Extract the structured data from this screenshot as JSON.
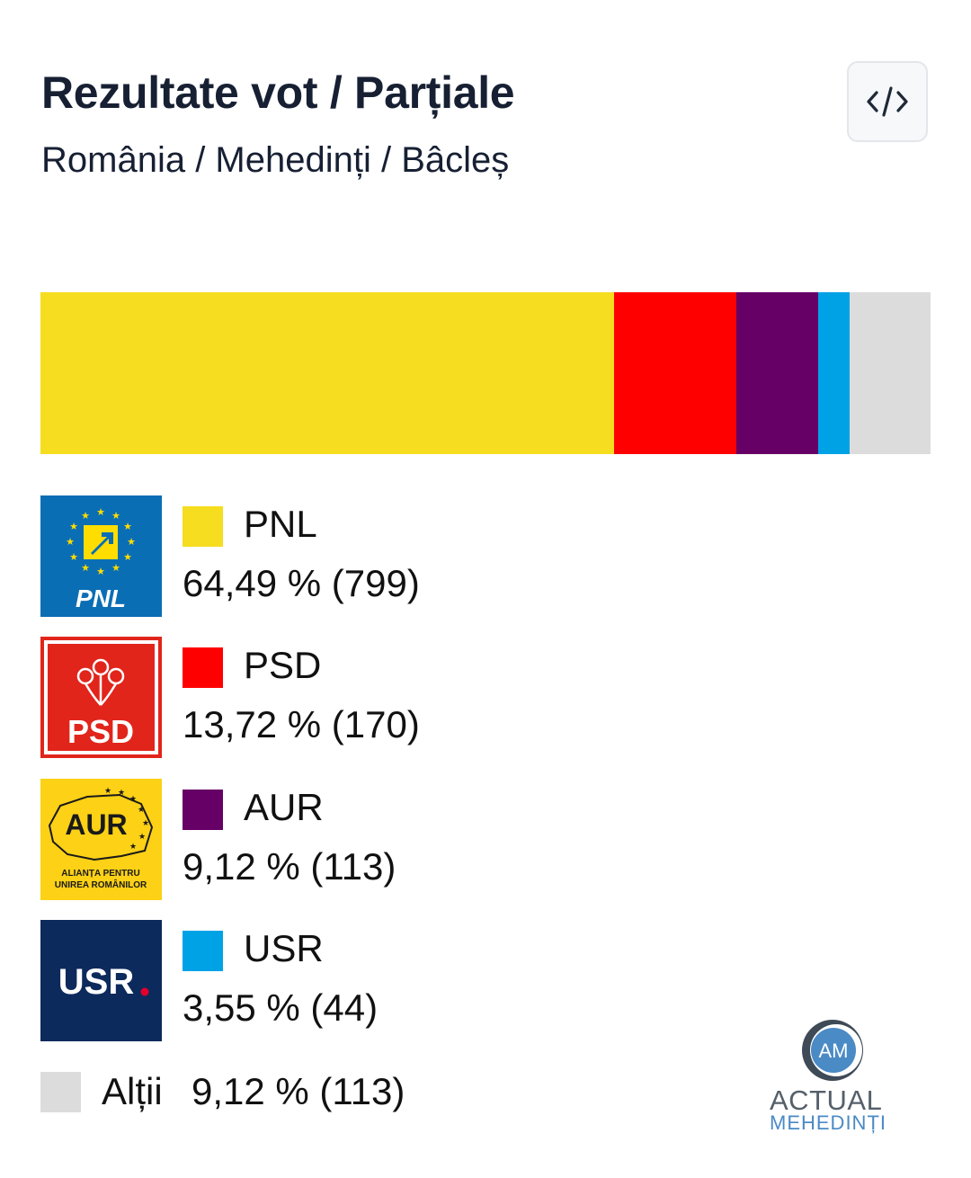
{
  "header": {
    "title": "Rezultate vot / Parțiale",
    "breadcrumb": "România / Mehedinți / Bâcleș"
  },
  "embed_button": {
    "icon": "code-icon"
  },
  "chart_data": {
    "type": "bar",
    "orientation": "horizontal-stacked",
    "categories": [
      "PNL",
      "PSD",
      "AUR",
      "USR",
      "Alții"
    ],
    "percentages": [
      64.49,
      13.72,
      9.12,
      3.55,
      9.12
    ],
    "votes": [
      799,
      170,
      113,
      44,
      113
    ],
    "colors": [
      "#f6dd1f",
      "#ff0000",
      "#660066",
      "#00a2e6",
      "#dcdcdc"
    ],
    "title": "Rezultate vot / Parțiale",
    "subtitle": "România / Mehedinți / Bâcleș",
    "legend_position": "bottom-left"
  },
  "legend": [
    {
      "name": "PNL",
      "value": "64,49 % (799)",
      "color": "#f6dd1f",
      "logo_text": "PNL"
    },
    {
      "name": "PSD",
      "value": "13,72 % (170)",
      "color": "#ff0000",
      "logo_text": "PSD"
    },
    {
      "name": "AUR",
      "value": "9,12 % (113)",
      "color": "#660066",
      "logo_text": "AUR",
      "logo_subtext_1": "ALIANȚA PENTRU",
      "logo_subtext_2": "UNIREA ROMÂNILOR"
    },
    {
      "name": "USR",
      "value": "3,55 % (44)",
      "color": "#00a2e6",
      "logo_text": "USR"
    }
  ],
  "others": {
    "name": "Alții",
    "value": "9,12 % (113)",
    "color": "#dcdcdc"
  },
  "brand": {
    "initials": "AM",
    "word1": "ACTUAL",
    "word2": "MEHEDINȚI"
  }
}
